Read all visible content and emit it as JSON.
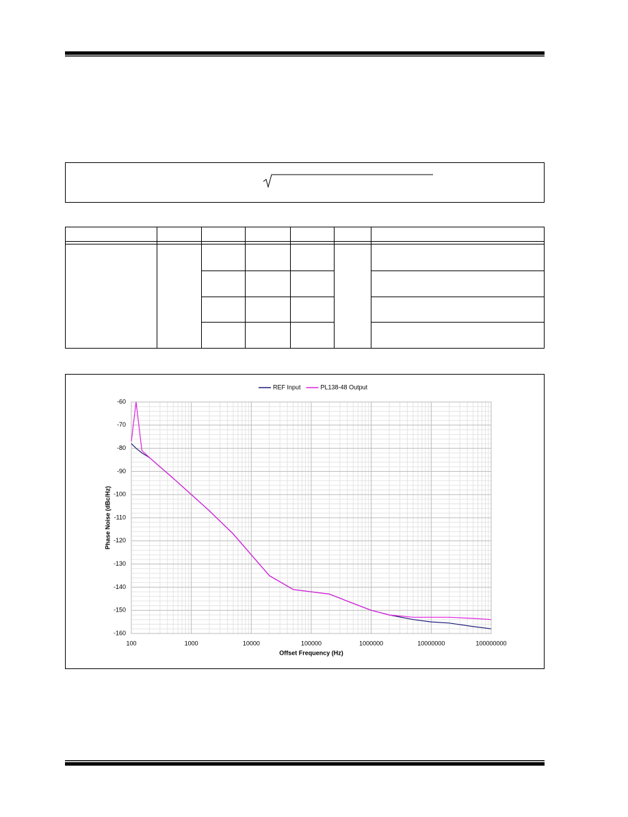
{
  "chart_data": {
    "type": "line",
    "xlabel": "Offset Frequency (Hz)",
    "ylabel": "Phase Noise (dBc/Hz)",
    "x": [
      100,
      120,
      150,
      200,
      300,
      500,
      1000,
      2000,
      5000,
      10000,
      20000,
      50000,
      100000,
      200000,
      500000,
      1000000,
      2000000,
      5000000,
      10000000,
      20000000,
      50000000,
      100000000
    ],
    "series": [
      {
        "name": "REF Input",
        "color": "#1f1f7a",
        "values": [
          -78,
          -80,
          -82,
          -84,
          -88,
          -93,
          -100,
          -107,
          -117,
          -126,
          -135,
          -141,
          -142,
          -143,
          -147,
          -150,
          -152,
          -154,
          -155,
          -155.5,
          -157,
          -158
        ]
      },
      {
        "name": "PL138-48 Output",
        "color": "#e020e0",
        "values": [
          -77,
          -60,
          -81,
          -84,
          -88,
          -93,
          -100,
          -107,
          -117,
          -126,
          -135,
          -141,
          -142,
          -143,
          -147,
          -150,
          -152,
          -153,
          -153,
          -153,
          -153.5,
          -154
        ]
      }
    ],
    "xscale": "log",
    "xlim": [
      100,
      100000000
    ],
    "xticks": [
      100,
      1000,
      10000,
      100000,
      1000000,
      10000000,
      100000000
    ],
    "ylim": [
      -160,
      -60
    ],
    "yticks": [
      -160,
      -150,
      -140,
      -130,
      -120,
      -110,
      -100,
      -90,
      -80,
      -70,
      -60
    ],
    "grid": true,
    "legend": "top"
  }
}
